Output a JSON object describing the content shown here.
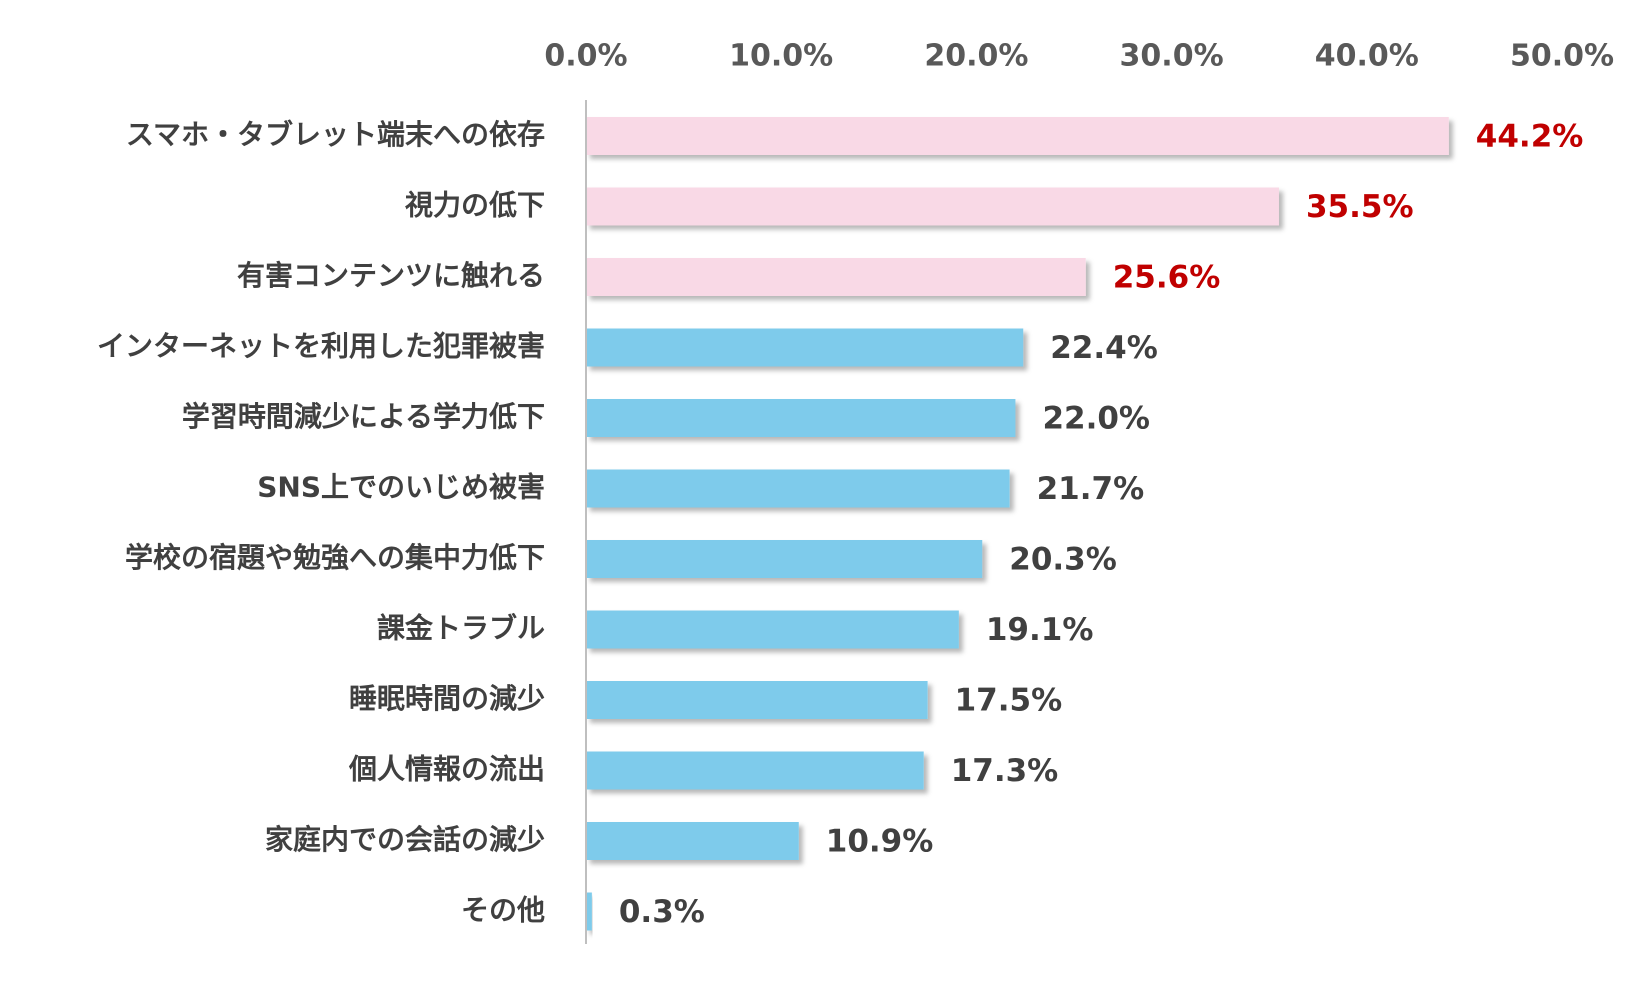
{
  "chart_data": {
    "type": "bar",
    "orientation": "horizontal",
    "title": "",
    "xlabel": "",
    "ylabel": "",
    "xlim": [
      0,
      50
    ],
    "grid": false,
    "legend": "none",
    "tick_values": [
      0,
      10,
      20,
      30,
      40,
      50
    ],
    "tick_labels": [
      "0.0%",
      "10.0%",
      "20.0%",
      "30.0%",
      "40.0%",
      "50.0%"
    ],
    "categories": [
      "スマホ・タブレット端末への依存",
      "視力の低下",
      "有害コンテンツに触れる",
      "インターネットを利用した犯罪被害",
      "学習時間減少による学力低下",
      "SNS上でのいじめ被害",
      "学校の宿題や勉強への集中力低下",
      "課金トラブル",
      "睡眠時間の減少",
      "個人情報の流出",
      "家庭内での会話の減少",
      "その他"
    ],
    "values": [
      44.2,
      35.5,
      25.6,
      22.4,
      22.0,
      21.7,
      20.3,
      19.1,
      17.5,
      17.3,
      10.9,
      0.3
    ],
    "value_labels": [
      "44.2%",
      "35.5%",
      "25.6%",
      "22.4%",
      "22.0%",
      "21.7%",
      "20.3%",
      "19.1%",
      "17.5%",
      "17.3%",
      "10.9%",
      "0.3%"
    ],
    "highlight_count": 3,
    "colors": {
      "highlight_bar": "#F9D9E6",
      "normal_bar": "#7ECBEB",
      "highlight_label": "#C00000",
      "normal_label": "#404040",
      "axis": "#BFBFBF"
    }
  }
}
